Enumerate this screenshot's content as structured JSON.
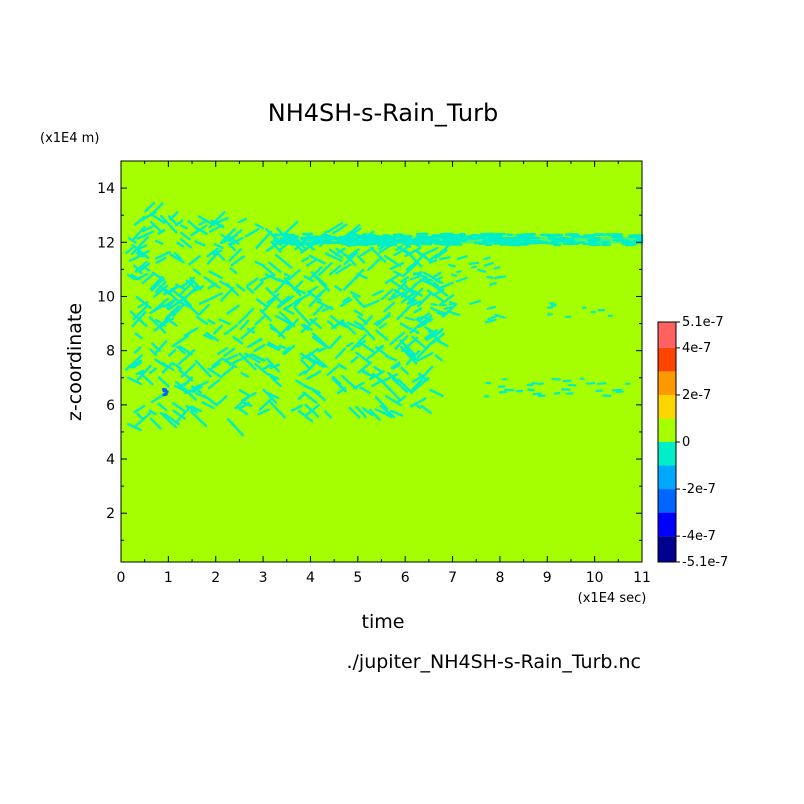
{
  "chart_data": {
    "type": "heatmap",
    "title": "NH4SH-s-Rain_Turb",
    "xlabel": "time",
    "ylabel": "z-coordinate",
    "x_unit": "(x1E4 sec)",
    "y_unit": "(x1E4 m)",
    "source_file": "./jupiter_NH4SH-s-Rain_Turb.nc",
    "xlim": [
      0,
      11
    ],
    "ylim": [
      0.2,
      15
    ],
    "x_ticks": [
      "0",
      "1",
      "2",
      "3",
      "4",
      "5",
      "6",
      "7",
      "8",
      "9",
      "10",
      "11"
    ],
    "y_ticks": [
      "2",
      "4",
      "6",
      "8",
      "10",
      "12",
      "14"
    ],
    "background_value": 0,
    "colorbar": {
      "min": -5.1e-07,
      "max": 5.1e-07,
      "tick_labels": [
        "5.1e-7",
        "4e-7",
        "2e-7",
        "0",
        "-2e-7",
        "-4e-7",
        "-5.1e-7"
      ],
      "levels": [
        -5.1e-07,
        -4e-07,
        -3e-07,
        -2e-07,
        -1e-07,
        0,
        1e-07,
        2e-07,
        3e-07,
        4e-07,
        5.1e-07
      ],
      "colors": [
        "#00008f",
        "#0000ff",
        "#0066ff",
        "#00a8ff",
        "#00eec8",
        "#a6ff00",
        "#ffd500",
        "#ff9900",
        "#ff4400",
        "#ff6060"
      ]
    },
    "regions": [
      {
        "name": "turbulent-patches",
        "value": -1e-07,
        "x_range": [
          0.1,
          6.8
        ],
        "z_range": [
          5.2,
          13.3
        ]
      },
      {
        "name": "upper-layer-band",
        "value": -1e-07,
        "x_range": [
          3.2,
          11
        ],
        "z_range": [
          11.9,
          12.3
        ]
      },
      {
        "name": "mid-layer-streaks",
        "value": -1e-07,
        "x_range": [
          6.0,
          8.0
        ],
        "z_range": [
          9.0,
          11.5
        ]
      },
      {
        "name": "lower-layer-dashes",
        "value": -1e-07,
        "x_range": [
          7.6,
          10.9
        ],
        "z_range": [
          6.3,
          7.0
        ]
      },
      {
        "name": "sparse-dashes",
        "value": -1e-07,
        "x_range": [
          9.0,
          10.6
        ],
        "z_range": [
          9.2,
          9.8
        ]
      },
      {
        "name": "min-spot",
        "value": -3e-07,
        "x_range": [
          0.85,
          0.95
        ],
        "z_range": [
          6.3,
          6.6
        ]
      }
    ]
  }
}
